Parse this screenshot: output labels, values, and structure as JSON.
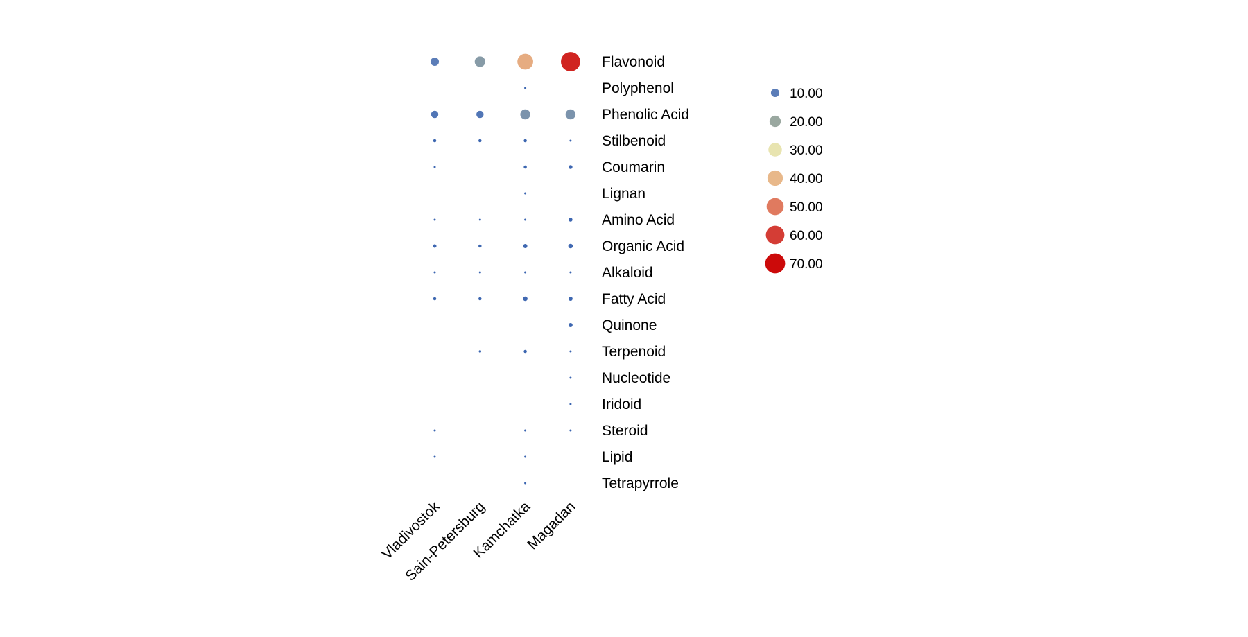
{
  "chart_data": {
    "type": "bubble",
    "title": "",
    "x_categories": [
      "Vladivostok",
      "Sain-Petersburg",
      "Kamchatka",
      "Magadan"
    ],
    "y_categories": [
      "Flavonoid",
      "Polyphenol",
      "Phenolic Acid",
      "Stilbenoid",
      "Coumarin",
      "Lignan",
      "Amino Acid",
      "Organic Acid",
      "Alkaloid",
      "Fatty Acid",
      "Quinone",
      "Terpenoid",
      "Nucleotide",
      "Iridoid",
      "Steroid",
      "Lipid",
      "Tetrapyrrole"
    ],
    "values": [
      [
        10,
        17,
        42,
        65
      ],
      [
        null,
        null,
        0.1,
        null
      ],
      [
        7,
        7,
        15,
        15
      ],
      [
        0.6,
        0.6,
        0.6,
        0.1
      ],
      [
        0.1,
        null,
        0.6,
        1.2
      ],
      [
        null,
        null,
        0.1,
        null
      ],
      [
        0.1,
        0.1,
        0.1,
        1.2
      ],
      [
        0.9,
        0.6,
        1.5,
        2
      ],
      [
        0.1,
        0.1,
        0.1,
        0.1
      ],
      [
        0.6,
        0.6,
        2,
        1.5
      ],
      [
        null,
        null,
        null,
        1.5
      ],
      [
        null,
        0.2,
        0.6,
        0.1
      ],
      [
        null,
        null,
        null,
        0.1
      ],
      [
        null,
        null,
        null,
        0.1
      ],
      [
        0.1,
        null,
        0.1,
        0.1
      ],
      [
        0.1,
        null,
        0.1,
        null
      ],
      [
        null,
        null,
        0.1,
        null
      ]
    ],
    "legend": {
      "position": "right",
      "labels": [
        "10.00",
        "20.00",
        "30.00",
        "40.00",
        "50.00",
        "60.00",
        "70.00"
      ],
      "values": [
        10,
        20,
        30,
        40,
        50,
        60,
        70
      ]
    },
    "color_scale": {
      "low": "#3a64b0",
      "stops": [
        "#5b7db8",
        "#9aa8a0",
        "#e8e4b0",
        "#e8b88a",
        "#e07a5f",
        "#d43d35",
        "#cc0a0a"
      ]
    },
    "grid": false
  }
}
